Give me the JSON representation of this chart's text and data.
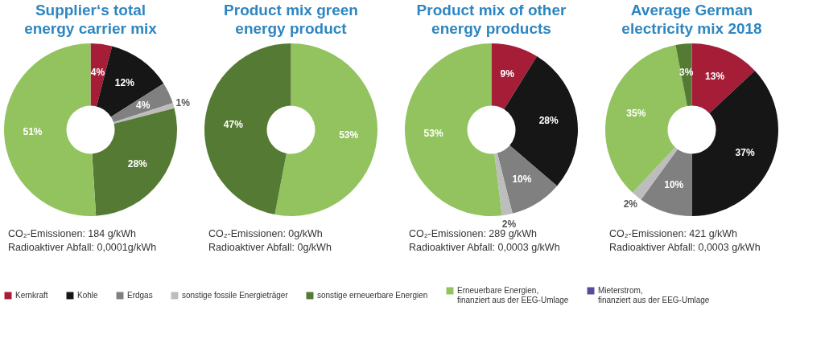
{
  "chart_data": [
    {
      "type": "donut",
      "title": "Supplier‘s total energy carrier mix",
      "categories": [
        "Kernkraft",
        "Kohle",
        "Erdgas",
        "sonstige fossile Energieträger",
        "sonstige erneuerbare Energien",
        "Erneuerbare Energien, finanziert aus der EEG-Umlage",
        "Mieterstrom, finanziert aus der EEG-Umlage"
      ],
      "values": [
        4,
        12,
        4,
        1,
        28,
        51,
        null
      ],
      "value_labels": [
        "4%",
        "12%",
        "4%",
        "1%",
        "28%",
        "51%",
        null
      ],
      "colors": [
        "#a51d37",
        "#161616",
        "#808080",
        "#bdbdbd",
        "#557a33",
        "#93c35f",
        "#5a4a9c"
      ],
      "legend": "bottom",
      "annotations": [
        "CO₂-Emissionen: 184 g/kWh",
        "Radioaktiver Abfall: 0,0001g/kWh"
      ]
    },
    {
      "type": "donut",
      "title": "Product mix green energy product",
      "categories": [
        null,
        null
      ],
      "values": [
        53,
        47
      ],
      "value_labels": [
        "53%",
        "47%"
      ],
      "colors": [
        "#93c35f",
        "#557a33"
      ],
      "annotations": [
        "CO₂-Emissionen: 0g/kWh",
        "Radioaktiver Abfall: 0g/kWh"
      ]
    },
    {
      "type": "donut",
      "title": "Product mix of other energy products",
      "categories": [
        null,
        null,
        null,
        null,
        null
      ],
      "values": [
        9,
        28,
        10,
        2,
        53
      ],
      "value_labels": [
        "9%",
        "28%",
        "10%",
        "2%",
        "53%"
      ],
      "colors": [
        "#a51d37",
        "#161616",
        "#808080",
        "#bdbdbd",
        "#93c35f"
      ],
      "annotations": [
        "CO₂-Emissionen: 289 g/kWh",
        "Radioaktiver Abfall: 0,0003 g/kWh"
      ]
    },
    {
      "type": "donut",
      "title": "Average German electricity mix 2018",
      "categories": [
        null,
        null,
        null,
        null,
        null,
        null
      ],
      "values": [
        13,
        37,
        10,
        2,
        35,
        3
      ],
      "value_labels": [
        "13%",
        "37%",
        "10%",
        "2%",
        "35%",
        "3%"
      ],
      "colors": [
        "#a51d37",
        "#161616",
        "#808080",
        "#bdbdbd",
        "#93c35f",
        "#557a33"
      ],
      "annotations": [
        "CO₂-Emissionen: 421 g/kWh",
        "Radioaktiver Abfall: 0,0003 g/kWh"
      ]
    }
  ]
}
